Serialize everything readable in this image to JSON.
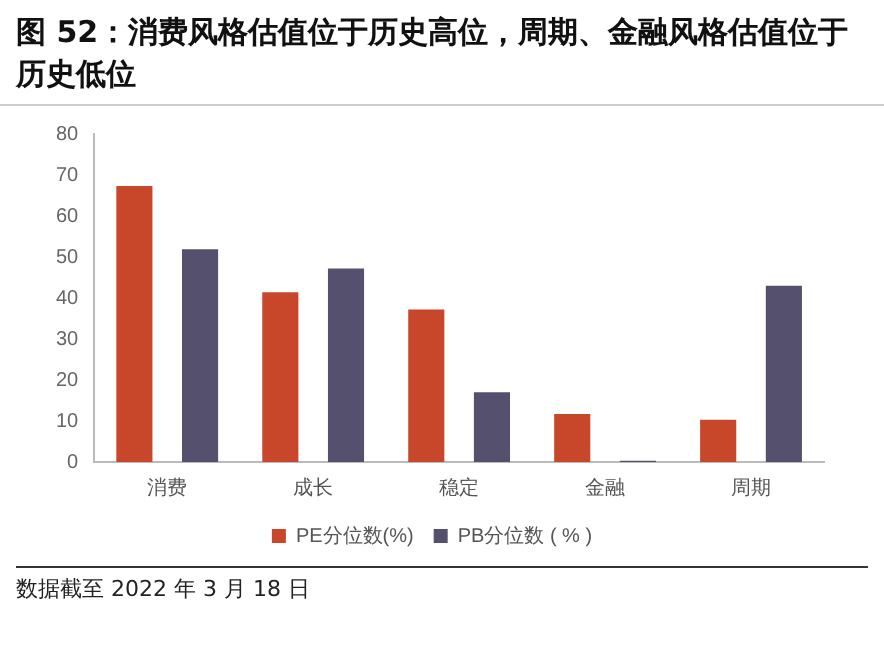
{
  "chart_data": {
    "type": "bar",
    "title": "图 52：消费风格估值位于历史高位，周期、金融风格估值位于历史低位",
    "categories": [
      "消费",
      "成长",
      "稳定",
      "金融",
      "周期"
    ],
    "series": [
      {
        "name": "PE分位数(%)",
        "color": "#c8472a",
        "values": [
          67.3,
          41.4,
          37.2,
          11.7,
          10.3
        ]
      },
      {
        "name": "PB分位数 ( % )",
        "color": "#54506e",
        "values": [
          51.9,
          47.2,
          17.0,
          0.3,
          43.0
        ]
      }
    ],
    "ylim": [
      0,
      80
    ],
    "yticks": [
      0,
      10,
      20,
      30,
      40,
      50,
      60,
      70,
      80
    ],
    "grid": false,
    "legend": "bottom",
    "annotations": [
      "数据截至 2022 年 3 月 18 日"
    ]
  }
}
